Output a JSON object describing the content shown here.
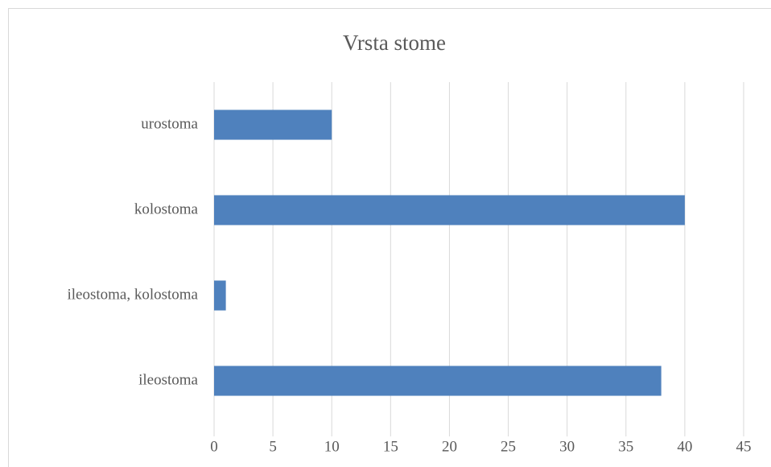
{
  "chart_data": {
    "type": "barh",
    "title": "Vrsta stome",
    "categories": [
      "ileostoma",
      "ileostoma, kolostoma",
      "kolostoma",
      "urostoma"
    ],
    "values": [
      38,
      1,
      40,
      10
    ],
    "color": "#4f81bd",
    "xlim": [
      0,
      45
    ],
    "xticks": [
      0,
      5,
      10,
      15,
      20,
      25,
      30,
      35,
      40,
      45
    ],
    "grid": true
  }
}
